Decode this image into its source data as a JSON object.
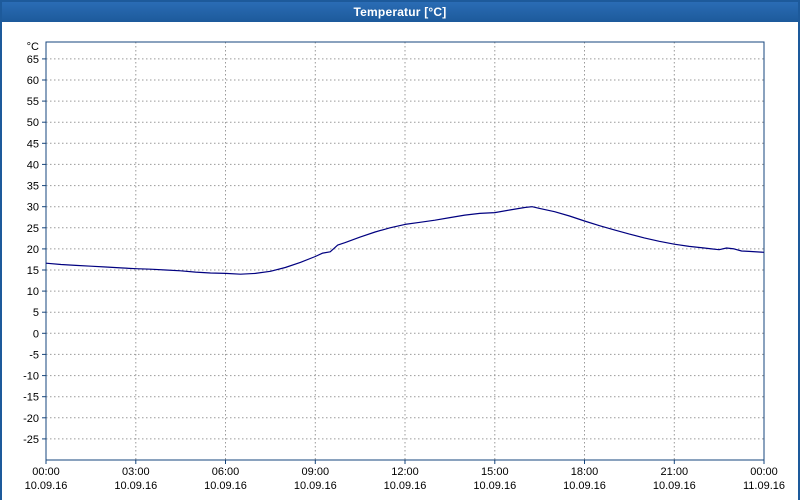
{
  "window": {
    "title": "Temperatur [°C]",
    "title_bar_color": "#1d5a9b"
  },
  "chart_data": {
    "type": "line",
    "title": "Temperatur [°C]",
    "ylabel": "°C",
    "xlabel": "",
    "xlim": [
      0,
      24
    ],
    "ylim": [
      -30,
      69
    ],
    "y_ticks": [
      -25,
      -20,
      -15,
      -10,
      -5,
      0,
      5,
      10,
      15,
      20,
      25,
      30,
      35,
      40,
      45,
      50,
      55,
      60,
      65
    ],
    "x_axis": {
      "hours": [
        0,
        3,
        6,
        9,
        12,
        15,
        18,
        21,
        24
      ],
      "times": [
        "00:00",
        "03:00",
        "06:00",
        "09:00",
        "12:00",
        "15:00",
        "18:00",
        "21:00",
        "00:00"
      ],
      "dates": [
        "10.09.16",
        "10.09.16",
        "10.09.16",
        "10.09.16",
        "10.09.16",
        "10.09.16",
        "10.09.16",
        "10.09.16",
        "11.09.16"
      ]
    },
    "grid": "dashed",
    "grid_color": "#9a9a9a",
    "axis_color": "#16457c",
    "series": [
      {
        "name": "Temperatur",
        "color": "#000080",
        "x": [
          0,
          0.5,
          1,
          1.5,
          2,
          2.5,
          3,
          3.5,
          4,
          4.5,
          5,
          5.5,
          6,
          6.5,
          7,
          7.5,
          8,
          8.5,
          9,
          9.25,
          9.5,
          9.75,
          10,
          10.5,
          11,
          11.5,
          12,
          12.5,
          13,
          13.5,
          14,
          14.5,
          15,
          15.5,
          16,
          16.25,
          16.5,
          17,
          17.5,
          18,
          18.5,
          19,
          19.5,
          20,
          20.5,
          21,
          21.5,
          22,
          22.25,
          22.5,
          22.75,
          23,
          23.25,
          23.5,
          24
        ],
        "y": [
          16.6,
          16.3,
          16.1,
          15.9,
          15.7,
          15.5,
          15.3,
          15.2,
          15.0,
          14.8,
          14.5,
          14.3,
          14.2,
          14.0,
          14.2,
          14.7,
          15.6,
          16.8,
          18.2,
          19.0,
          19.3,
          20.9,
          21.5,
          22.8,
          24.0,
          25.0,
          25.8,
          26.3,
          26.8,
          27.4,
          28.0,
          28.4,
          28.6,
          29.2,
          29.8,
          30.0,
          29.6,
          28.8,
          27.8,
          26.6,
          25.5,
          24.5,
          23.5,
          22.6,
          21.8,
          21.1,
          20.6,
          20.2,
          20.0,
          19.8,
          20.2,
          20.0,
          19.5,
          19.4,
          19.2
        ]
      }
    ]
  }
}
